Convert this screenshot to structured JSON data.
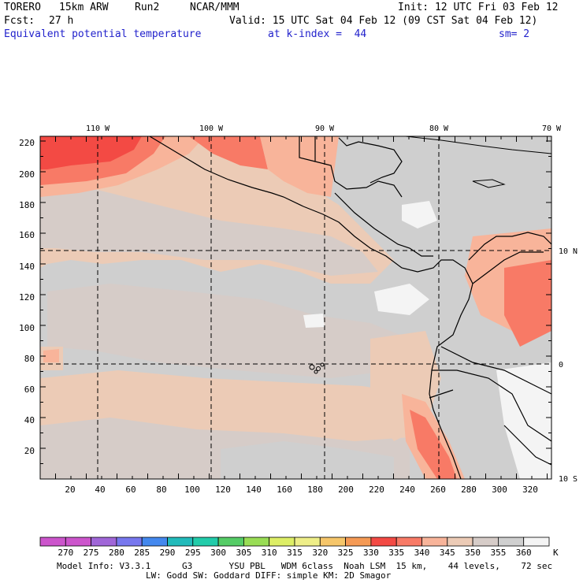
{
  "header": {
    "model": "TORERO",
    "resolution": "15km ARW",
    "run": "Run2",
    "org": "NCAR/MMM",
    "init": "Init: 12 UTC Fri 03 Feb 12",
    "fcst_label": "Fcst:",
    "fcst_hours": "27 h",
    "valid": "Valid: 15 UTC Sat 04 Feb 12 (09 CST Sat 04 Feb 12)"
  },
  "field": {
    "title": "Equivalent potential temperature",
    "level": "at k-index =  44",
    "smoothing": "sm= 2"
  },
  "map": {
    "top_lon_labels": [
      "110 W",
      "100 W",
      "90 W",
      "80 W",
      "70 W"
    ],
    "right_lat_labels": [
      "10 N",
      "0",
      "10 S"
    ],
    "left_ticks": [
      "220",
      "200",
      "180",
      "160",
      "140",
      "120",
      "100",
      "80",
      "60",
      "40",
      "20"
    ],
    "bottom_ticks": [
      "20",
      "40",
      "60",
      "80",
      "100",
      "120",
      "140",
      "160",
      "180",
      "200",
      "220",
      "240",
      "260",
      "280",
      "300",
      "320"
    ],
    "colors": {
      "c330": "#f34a44",
      "c335": "#f87a66",
      "c340": "#f8b49a",
      "c345": "#eccbb6",
      "c350": "#d6ccc8",
      "c355": "#cfcfcf",
      "c360": "#f4f4f4"
    }
  },
  "colorbar": {
    "labels": [
      "270",
      "275",
      "280",
      "285",
      "290",
      "295",
      "300",
      "305",
      "310",
      "315",
      "320",
      "325",
      "330",
      "335",
      "340",
      "345",
      "350",
      "355",
      "360"
    ],
    "unit": "K",
    "colors": [
      "#cc55cc",
      "#a066d8",
      "#7777ee",
      "#4488ee",
      "#22bbbb",
      "#22ccaa",
      "#55cc66",
      "#99dd55",
      "#ddee66",
      "#eeee88",
      "#f6c66a",
      "#f59a55",
      "#f34a44",
      "#f87a66",
      "#f8b49a",
      "#eccbb6",
      "#d6ccc8",
      "#cfcfcf",
      "#f4f4f4"
    ]
  },
  "footer": {
    "line1": "Model Info: V3.3.1      G3       YSU PBL   WDM 6class  Noah LSM  15 km,    44 levels,    72 sec",
    "line2": "LW: Godd SW: Goddard DIFF: simple KM: 2D Smagor"
  }
}
